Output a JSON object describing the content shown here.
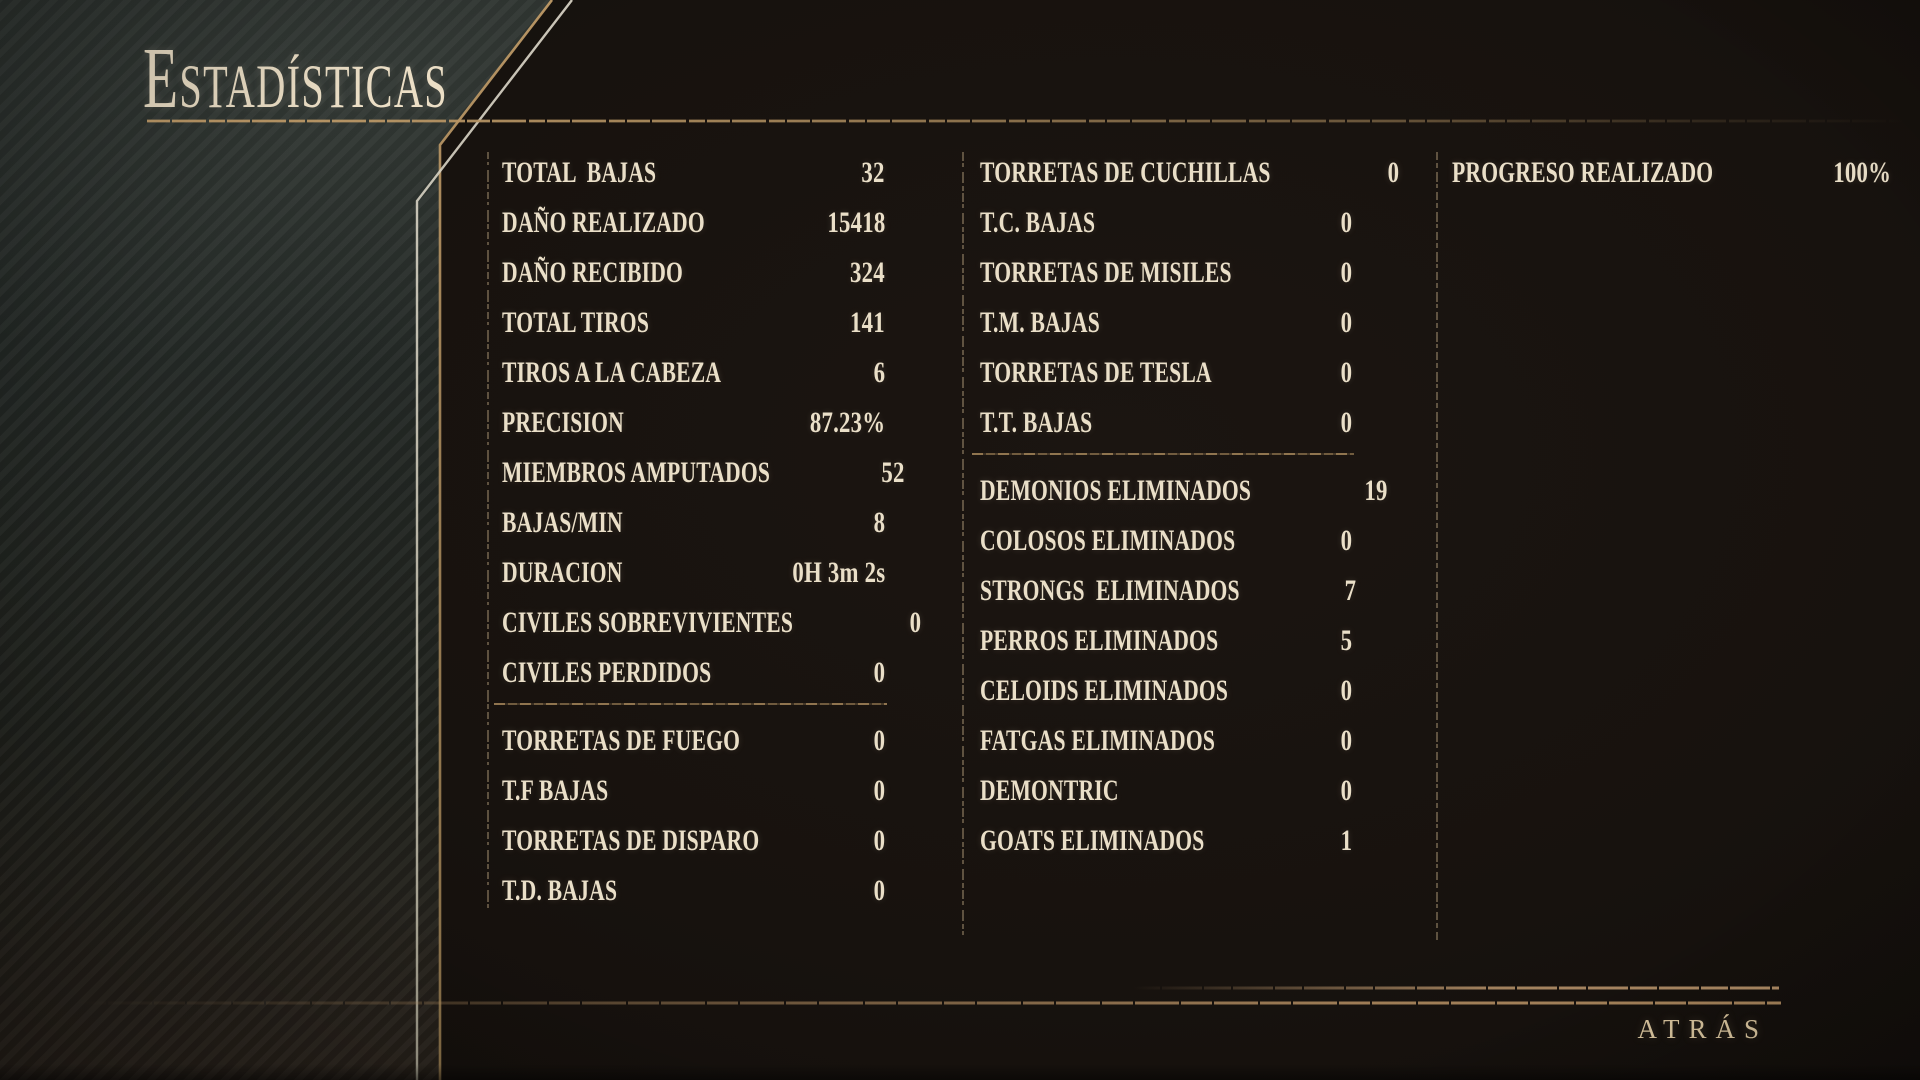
{
  "title": {
    "initial": "E",
    "rest": "STADÍSTICAS",
    "full": "Estadísticas"
  },
  "back": {
    "label": "ATRÁS"
  },
  "columns": [
    {
      "name": "combat-stats",
      "groups": [
        {
          "rows": [
            {
              "label": "TOTAL  BAJAS",
              "value": "32"
            },
            {
              "label": "DAÑO REALIZADO",
              "value": "15418"
            },
            {
              "label": "DAÑO RECIBIDO",
              "value": "324"
            },
            {
              "label": "TOTAL TIROS",
              "value": "141"
            },
            {
              "label": "TIROS A LA CABEZA",
              "value": "6"
            },
            {
              "label": "PRECISION",
              "value": "87.23%"
            },
            {
              "label": "MIEMBROS AMPUTADOS",
              "value": "52"
            },
            {
              "label": "BAJAS/MIN",
              "value": "8"
            },
            {
              "label": "DURACION",
              "value": "0H 3m 2s"
            },
            {
              "label": "CIVILES SOBREVIVIENTES",
              "value": "0"
            },
            {
              "label": "CIVILES PERDIDOS",
              "value": "0"
            }
          ]
        },
        {
          "rows": [
            {
              "label": "TORRETAS DE FUEGO",
              "value": "0"
            },
            {
              "label": "T.F BAJAS",
              "value": "0"
            },
            {
              "label": "TORRETAS DE DISPARO",
              "value": "0"
            },
            {
              "label": "T.D. BAJAS",
              "value": "0"
            }
          ]
        }
      ]
    },
    {
      "name": "turrets-and-enemies",
      "groups": [
        {
          "rows": [
            {
              "label": "TORRETAS DE CUCHILLAS",
              "value": "0"
            },
            {
              "label": "T.C. BAJAS",
              "value": "0"
            },
            {
              "label": "TORRETAS DE MISILES",
              "value": "0"
            },
            {
              "label": "T.M. BAJAS",
              "value": "0"
            },
            {
              "label": "TORRETAS DE TESLA",
              "value": "0"
            },
            {
              "label": "T.T. BAJAS",
              "value": "0"
            }
          ]
        },
        {
          "rows": [
            {
              "label": "DEMONIOS ELIMINADOS",
              "value": "19"
            },
            {
              "label": "COLOSOS ELIMINADOS",
              "value": "0"
            },
            {
              "label": "STRONGS  ELIMINADOS",
              "value": "7"
            },
            {
              "label": "PERROS ELIMINADOS",
              "value": "5"
            },
            {
              "label": "CELOIDS ELIMINADOS",
              "value": "0"
            },
            {
              "label": "FATGAS ELIMINADOS",
              "value": "0"
            },
            {
              "label": "DEMONTRIC",
              "value": "0"
            },
            {
              "label": "GOATS ELIMINADOS",
              "value": "1"
            }
          ]
        }
      ]
    },
    {
      "name": "progress",
      "groups": [
        {
          "rows": [
            {
              "label": "PROGRESO REALIZADO",
              "value": "100%"
            }
          ]
        }
      ]
    }
  ],
  "colors": {
    "text_cream": "#eadfc8",
    "accent_tan": "#a8895c",
    "accent_cream": "#d9d4c6",
    "background": "#17120e",
    "panel": "#262b28"
  }
}
